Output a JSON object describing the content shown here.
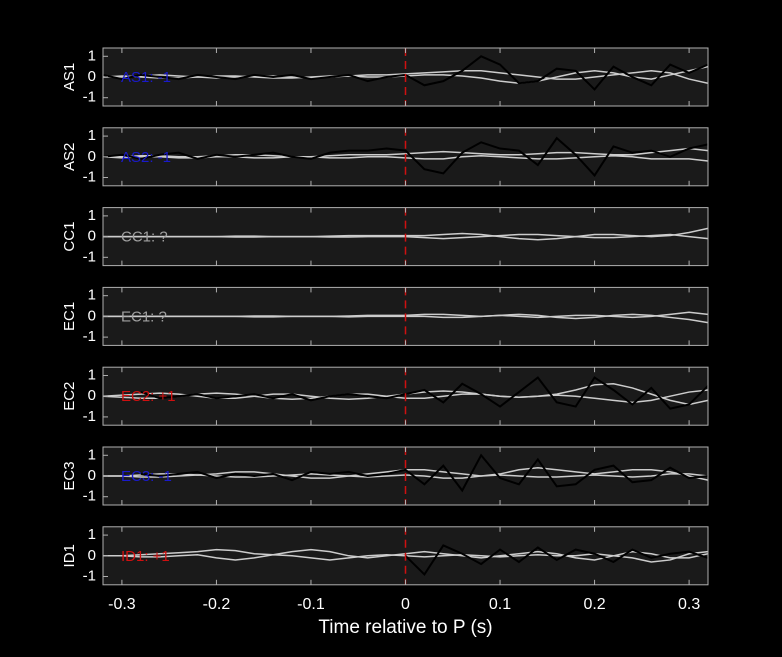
{
  "chart_data": [
    {
      "type": "line",
      "ylabel": "AS1",
      "annotation": "AS1: -1",
      "annotation_color": "#1a1acc",
      "vline": 0,
      "vline_color": "#d01010",
      "xlim": [
        -0.32,
        0.32
      ],
      "ylim": [
        -1.4,
        1.4
      ],
      "yticks": [
        -1,
        0,
        1
      ],
      "x": [
        -0.32,
        -0.3,
        -0.28,
        -0.26,
        -0.24,
        -0.22,
        -0.2,
        -0.18,
        -0.16,
        -0.14,
        -0.12,
        -0.1,
        -0.08,
        -0.06,
        -0.04,
        -0.02,
        0,
        0.02,
        0.04,
        0.06,
        0.08,
        0.1,
        0.12,
        0.14,
        0.16,
        0.18,
        0.2,
        0.22,
        0.24,
        0.26,
        0.28,
        0.3,
        0.32
      ],
      "series": [
        {
          "color": "#cccccc",
          "values": [
            0,
            0,
            0.05,
            0.1,
            0.05,
            0,
            -0.05,
            0,
            0.05,
            0.05,
            0,
            -0.05,
            0,
            0.05,
            0.1,
            0.1,
            0.15,
            0.2,
            0.25,
            0.3,
            0.3,
            0.2,
            0.1,
            0,
            -0.1,
            -0.1,
            0,
            0.1,
            0.2,
            0.3,
            0.2,
            -0.1,
            -0.3
          ]
        },
        {
          "color": "#cccccc",
          "values": [
            0,
            0.05,
            0,
            -0.05,
            -0.05,
            0,
            0.05,
            0.05,
            0,
            -0.05,
            -0.05,
            0,
            0.05,
            0.05,
            0,
            0,
            0.05,
            0.1,
            0.1,
            0.05,
            -0.05,
            -0.2,
            -0.3,
            -0.2,
            0,
            0.2,
            0.3,
            0.2,
            0,
            -0.1,
            0.1,
            0.3,
            0.5
          ]
        },
        {
          "color": "#000000",
          "values": [
            0.1,
            -0.1,
            0.1,
            0,
            -0.1,
            0.1,
            0,
            -0.1,
            0.1,
            0,
            0.1,
            -0.1,
            0,
            0.1,
            -0.2,
            0,
            0.1,
            -0.4,
            -0.2,
            0.3,
            1.0,
            0.6,
            -0.3,
            -0.2,
            0.4,
            0.3,
            -0.6,
            0.5,
            0,
            -0.4,
            0.6,
            0.2,
            0.6
          ]
        }
      ]
    },
    {
      "type": "line",
      "ylabel": "AS2",
      "annotation": "AS2: -1",
      "annotation_color": "#1a1acc",
      "vline": 0,
      "vline_color": "#d01010",
      "xlim": [
        -0.32,
        0.32
      ],
      "ylim": [
        -1.4,
        1.4
      ],
      "yticks": [
        -1,
        0,
        1
      ],
      "x": [
        -0.32,
        -0.3,
        -0.28,
        -0.26,
        -0.24,
        -0.22,
        -0.2,
        -0.18,
        -0.16,
        -0.14,
        -0.12,
        -0.1,
        -0.08,
        -0.06,
        -0.04,
        -0.02,
        0,
        0.02,
        0.04,
        0.06,
        0.08,
        0.1,
        0.12,
        0.14,
        0.16,
        0.18,
        0.2,
        0.22,
        0.24,
        0.26,
        0.28,
        0.3,
        0.32
      ],
      "series": [
        {
          "color": "#cccccc",
          "values": [
            0,
            0,
            0.05,
            0.05,
            0,
            0,
            0.05,
            0.1,
            0.1,
            0.05,
            0,
            0,
            0.05,
            0.1,
            0.1,
            0.1,
            0.15,
            0.2,
            0.25,
            0.2,
            0.15,
            0.1,
            0.1,
            0.15,
            0.2,
            0.2,
            0.15,
            0.1,
            0.1,
            0.2,
            0.3,
            0.4,
            0.3
          ]
        },
        {
          "color": "#cccccc",
          "values": [
            0,
            -0.05,
            0,
            0,
            -0.05,
            -0.05,
            0,
            0,
            -0.05,
            -0.05,
            0,
            0,
            -0.05,
            -0.05,
            0,
            0,
            -0.05,
            -0.1,
            -0.1,
            0,
            0.05,
            0,
            -0.05,
            -0.1,
            -0.1,
            -0.05,
            0,
            0.05,
            0,
            -0.1,
            -0.1,
            -0.1,
            -0.2
          ]
        },
        {
          "color": "#000000",
          "values": [
            0,
            0.1,
            -0.1,
            0.1,
            0.2,
            -0.1,
            0.1,
            0,
            0.1,
            0.2,
            0,
            -0.1,
            0.2,
            0.3,
            0.3,
            0.4,
            0.3,
            -0.6,
            -0.8,
            0.2,
            0.7,
            0.4,
            0.3,
            -0.4,
            0.9,
            0.1,
            -0.9,
            0.5,
            0.2,
            0.3,
            0,
            0.4,
            0.6
          ]
        }
      ]
    },
    {
      "type": "line",
      "ylabel": "CC1",
      "annotation": "CC1: ?",
      "annotation_color": "#a0a0a0",
      "vline": 0,
      "vline_color": "#d01010",
      "xlim": [
        -0.32,
        0.32
      ],
      "ylim": [
        -1.4,
        1.4
      ],
      "yticks": [
        -1,
        0,
        1
      ],
      "x": [
        -0.32,
        -0.3,
        -0.28,
        -0.26,
        -0.24,
        -0.22,
        -0.2,
        -0.18,
        -0.16,
        -0.14,
        -0.12,
        -0.1,
        -0.08,
        -0.06,
        -0.04,
        -0.02,
        0,
        0.02,
        0.04,
        0.06,
        0.08,
        0.1,
        0.12,
        0.14,
        0.16,
        0.18,
        0.2,
        0.22,
        0.24,
        0.26,
        0.28,
        0.3,
        0.32
      ],
      "series": [
        {
          "color": "#cccccc",
          "values": [
            0,
            0,
            0,
            0,
            0,
            0,
            0,
            0.02,
            0.02,
            0,
            0,
            0,
            0.02,
            0.05,
            0.05,
            0.05,
            0.05,
            0.05,
            0.1,
            0.15,
            0.1,
            0,
            -0.1,
            -0.15,
            -0.1,
            0,
            0.1,
            0.1,
            0.05,
            0,
            0.05,
            0.2,
            0.4
          ]
        },
        {
          "color": "#cccccc",
          "values": [
            0,
            0,
            0,
            0,
            0,
            0,
            0,
            -0.02,
            -0.02,
            0,
            0,
            0,
            -0.02,
            -0.02,
            0,
            0,
            0,
            -0.05,
            -0.1,
            -0.05,
            0,
            0.05,
            0.1,
            0.1,
            0.05,
            0,
            -0.05,
            -0.05,
            0,
            0.05,
            0.1,
            0,
            -0.1
          ]
        }
      ]
    },
    {
      "type": "line",
      "ylabel": "EC1",
      "annotation": "EC1: ?",
      "annotation_color": "#a0a0a0",
      "vline": 0,
      "vline_color": "#d01010",
      "xlim": [
        -0.32,
        0.32
      ],
      "ylim": [
        -1.4,
        1.4
      ],
      "yticks": [
        -1,
        0,
        1
      ],
      "x": [
        -0.32,
        -0.3,
        -0.28,
        -0.26,
        -0.24,
        -0.22,
        -0.2,
        -0.18,
        -0.16,
        -0.14,
        -0.12,
        -0.1,
        -0.08,
        -0.06,
        -0.04,
        -0.02,
        0,
        0.02,
        0.04,
        0.06,
        0.08,
        0.1,
        0.12,
        0.14,
        0.16,
        0.18,
        0.2,
        0.22,
        0.24,
        0.26,
        0.28,
        0.3,
        0.32
      ],
      "series": [
        {
          "color": "#cccccc",
          "values": [
            0,
            0,
            0,
            0,
            0,
            0,
            0,
            0,
            0.02,
            0.02,
            0,
            0,
            0,
            0.02,
            0.05,
            0.05,
            0.05,
            0.1,
            0.1,
            0.05,
            0,
            0.05,
            0.1,
            0.05,
            -0.05,
            -0.1,
            -0.05,
            0.05,
            0.1,
            0.05,
            -0.05,
            -0.15,
            -0.3
          ]
        },
        {
          "color": "#cccccc",
          "values": [
            0,
            0,
            0,
            0,
            0,
            0,
            0,
            0,
            -0.02,
            -0.02,
            0,
            0,
            0,
            -0.02,
            0,
            0,
            0,
            0,
            -0.05,
            -0.05,
            0,
            0.05,
            0,
            -0.05,
            0,
            0.05,
            0.05,
            0,
            -0.05,
            0,
            0.1,
            0.2,
            0.1
          ]
        }
      ]
    },
    {
      "type": "line",
      "ylabel": "EC2",
      "annotation": "EC2: +1",
      "annotation_color": "#d01010",
      "vline": 0,
      "vline_color": "#d01010",
      "xlim": [
        -0.32,
        0.32
      ],
      "ylim": [
        -1.4,
        1.4
      ],
      "yticks": [
        -1,
        0,
        1
      ],
      "x": [
        -0.32,
        -0.3,
        -0.28,
        -0.26,
        -0.24,
        -0.22,
        -0.2,
        -0.18,
        -0.16,
        -0.14,
        -0.12,
        -0.1,
        -0.08,
        -0.06,
        -0.04,
        -0.02,
        0,
        0.02,
        0.04,
        0.06,
        0.08,
        0.1,
        0.12,
        0.14,
        0.16,
        0.18,
        0.2,
        0.22,
        0.24,
        0.26,
        0.28,
        0.3,
        0.32
      ],
      "series": [
        {
          "color": "#cccccc",
          "values": [
            0,
            0.05,
            0.1,
            0.15,
            0.1,
            0,
            -0.1,
            -0.1,
            0,
            0.1,
            0.1,
            0,
            -0.1,
            -0.15,
            -0.1,
            0,
            0.1,
            0.2,
            0.25,
            0.2,
            0.1,
            0,
            -0.05,
            0,
            0.1,
            0.3,
            0.55,
            0.6,
            0.4,
            0.1,
            -0.2,
            -0.4,
            -0.2
          ]
        },
        {
          "color": "#cccccc",
          "values": [
            0,
            -0.05,
            -0.1,
            -0.1,
            0,
            0.1,
            0.15,
            0.1,
            0,
            -0.1,
            -0.15,
            -0.1,
            0,
            0.1,
            0.1,
            0,
            -0.1,
            -0.1,
            0,
            0.1,
            0.1,
            0,
            -0.05,
            0,
            0.05,
            0,
            -0.1,
            -0.2,
            -0.3,
            -0.2,
            0,
            0.2,
            0.3
          ]
        },
        {
          "color": "#000000",
          "values": [
            null,
            null,
            0.2,
            -0.1,
            0,
            0.1,
            -0.1,
            0,
            0.1,
            -0.1,
            0.1,
            -0.2,
            0,
            0.1,
            0,
            -0.1,
            0.1,
            0.3,
            -0.3,
            0.6,
            0.1,
            -0.5,
            0.2,
            0.9,
            -0.3,
            -0.5,
            0.9,
            0.3,
            -0.4,
            0.4,
            -0.6,
            -0.4,
            0.5
          ]
        }
      ]
    },
    {
      "type": "line",
      "ylabel": "EC3",
      "annotation": "EC3: -1",
      "annotation_color": "#1a1acc",
      "vline": 0,
      "vline_color": "#d01010",
      "xlim": [
        -0.32,
        0.32
      ],
      "ylim": [
        -1.4,
        1.4
      ],
      "yticks": [
        -1,
        0,
        1
      ],
      "x": [
        -0.32,
        -0.3,
        -0.28,
        -0.26,
        -0.24,
        -0.22,
        -0.2,
        -0.18,
        -0.16,
        -0.14,
        -0.12,
        -0.1,
        -0.08,
        -0.06,
        -0.04,
        -0.02,
        0,
        0.02,
        0.04,
        0.06,
        0.08,
        0.1,
        0.12,
        0.14,
        0.16,
        0.18,
        0.2,
        0.22,
        0.24,
        0.26,
        0.28,
        0.3,
        0.32
      ],
      "series": [
        {
          "color": "#cccccc",
          "values": [
            0,
            0,
            0.05,
            0.1,
            0.1,
            0.05,
            0.1,
            0.2,
            0.2,
            0.1,
            0,
            -0.1,
            -0.1,
            0,
            0.1,
            0.2,
            0.3,
            0.3,
            0.2,
            0.1,
            0,
            0.1,
            0.3,
            0.4,
            0.3,
            0.2,
            0.1,
            0.2,
            0.3,
            0.3,
            0.2,
            0,
            -0.2
          ]
        },
        {
          "color": "#cccccc",
          "values": [
            0,
            0,
            -0.05,
            -0.05,
            0,
            0.05,
            0,
            -0.05,
            -0.05,
            0,
            0.05,
            0.1,
            0.05,
            0,
            -0.05,
            0,
            0.05,
            0,
            -0.1,
            -0.1,
            0,
            0.05,
            0,
            -0.05,
            -0.05,
            0,
            0.05,
            0,
            -0.05,
            0,
            0.1,
            0.1,
            0
          ]
        },
        {
          "color": "#000000",
          "values": [
            null,
            null,
            0.1,
            0,
            0.1,
            0.2,
            -0.1,
            0.1,
            0,
            0.1,
            -0.2,
            0.2,
            0.1,
            0.2,
            0,
            0.1,
            0.3,
            -0.4,
            0.5,
            -0.7,
            1.0,
            -0.1,
            -0.4,
            0.8,
            -0.5,
            -0.4,
            0.3,
            0.5,
            -0.3,
            -0.2,
            0.4,
            -0.1,
            0
          ]
        }
      ]
    },
    {
      "type": "line",
      "ylabel": "ID1",
      "annotation": "ID1: +1",
      "annotation_color": "#d01010",
      "vline": 0,
      "vline_color": "#d01010",
      "xlim": [
        -0.32,
        0.32
      ],
      "ylim": [
        -1.4,
        1.4
      ],
      "yticks": [
        -1,
        0,
        1
      ],
      "xlabel": "Time relative to P (s)",
      "xticks": [
        -0.3,
        -0.2,
        -0.1,
        0,
        0.1,
        0.2,
        0.3
      ],
      "x": [
        -0.32,
        -0.3,
        -0.28,
        -0.26,
        -0.24,
        -0.22,
        -0.2,
        -0.18,
        -0.16,
        -0.14,
        -0.12,
        -0.1,
        -0.08,
        -0.06,
        -0.04,
        -0.02,
        0,
        0.02,
        0.04,
        0.06,
        0.08,
        0.1,
        0.12,
        0.14,
        0.16,
        0.18,
        0.2,
        0.22,
        0.24,
        0.26,
        0.28,
        0.3,
        0.32
      ],
      "series": [
        {
          "color": "#cccccc",
          "values": [
            0,
            0,
            0.05,
            0.1,
            0.15,
            0.2,
            0.3,
            0.25,
            0.1,
            0.05,
            0.2,
            0.3,
            0.2,
            0,
            -0.1,
            0,
            0.1,
            0.2,
            0.1,
            0,
            -0.1,
            0,
            0.1,
            0.2,
            0.1,
            -0.1,
            -0.2,
            0,
            0.2,
            0.1,
            -0.1,
            -0.1,
            0.1
          ]
        },
        {
          "color": "#cccccc",
          "values": [
            0,
            0,
            -0.05,
            -0.05,
            0,
            0.05,
            -0.1,
            -0.2,
            -0.1,
            0.05,
            0,
            -0.1,
            -0.2,
            -0.1,
            0,
            0.05,
            0,
            -0.05,
            0,
            0.05,
            0,
            -0.05,
            0,
            0.05,
            0,
            0,
            0.1,
            0,
            -0.1,
            -0.3,
            -0.2,
            0.1,
            0.2
          ]
        },
        {
          "color": "#000000",
          "values": [
            null,
            null,
            null,
            null,
            null,
            null,
            null,
            null,
            null,
            null,
            null,
            null,
            null,
            null,
            null,
            null,
            0,
            -0.9,
            0.5,
            0.1,
            -0.4,
            0.3,
            -0.3,
            0.4,
            -0.2,
            0.3,
            0.1,
            -0.3,
            0.3,
            -0.1,
            0.1,
            0.2,
            -0.1
          ]
        }
      ]
    }
  ]
}
